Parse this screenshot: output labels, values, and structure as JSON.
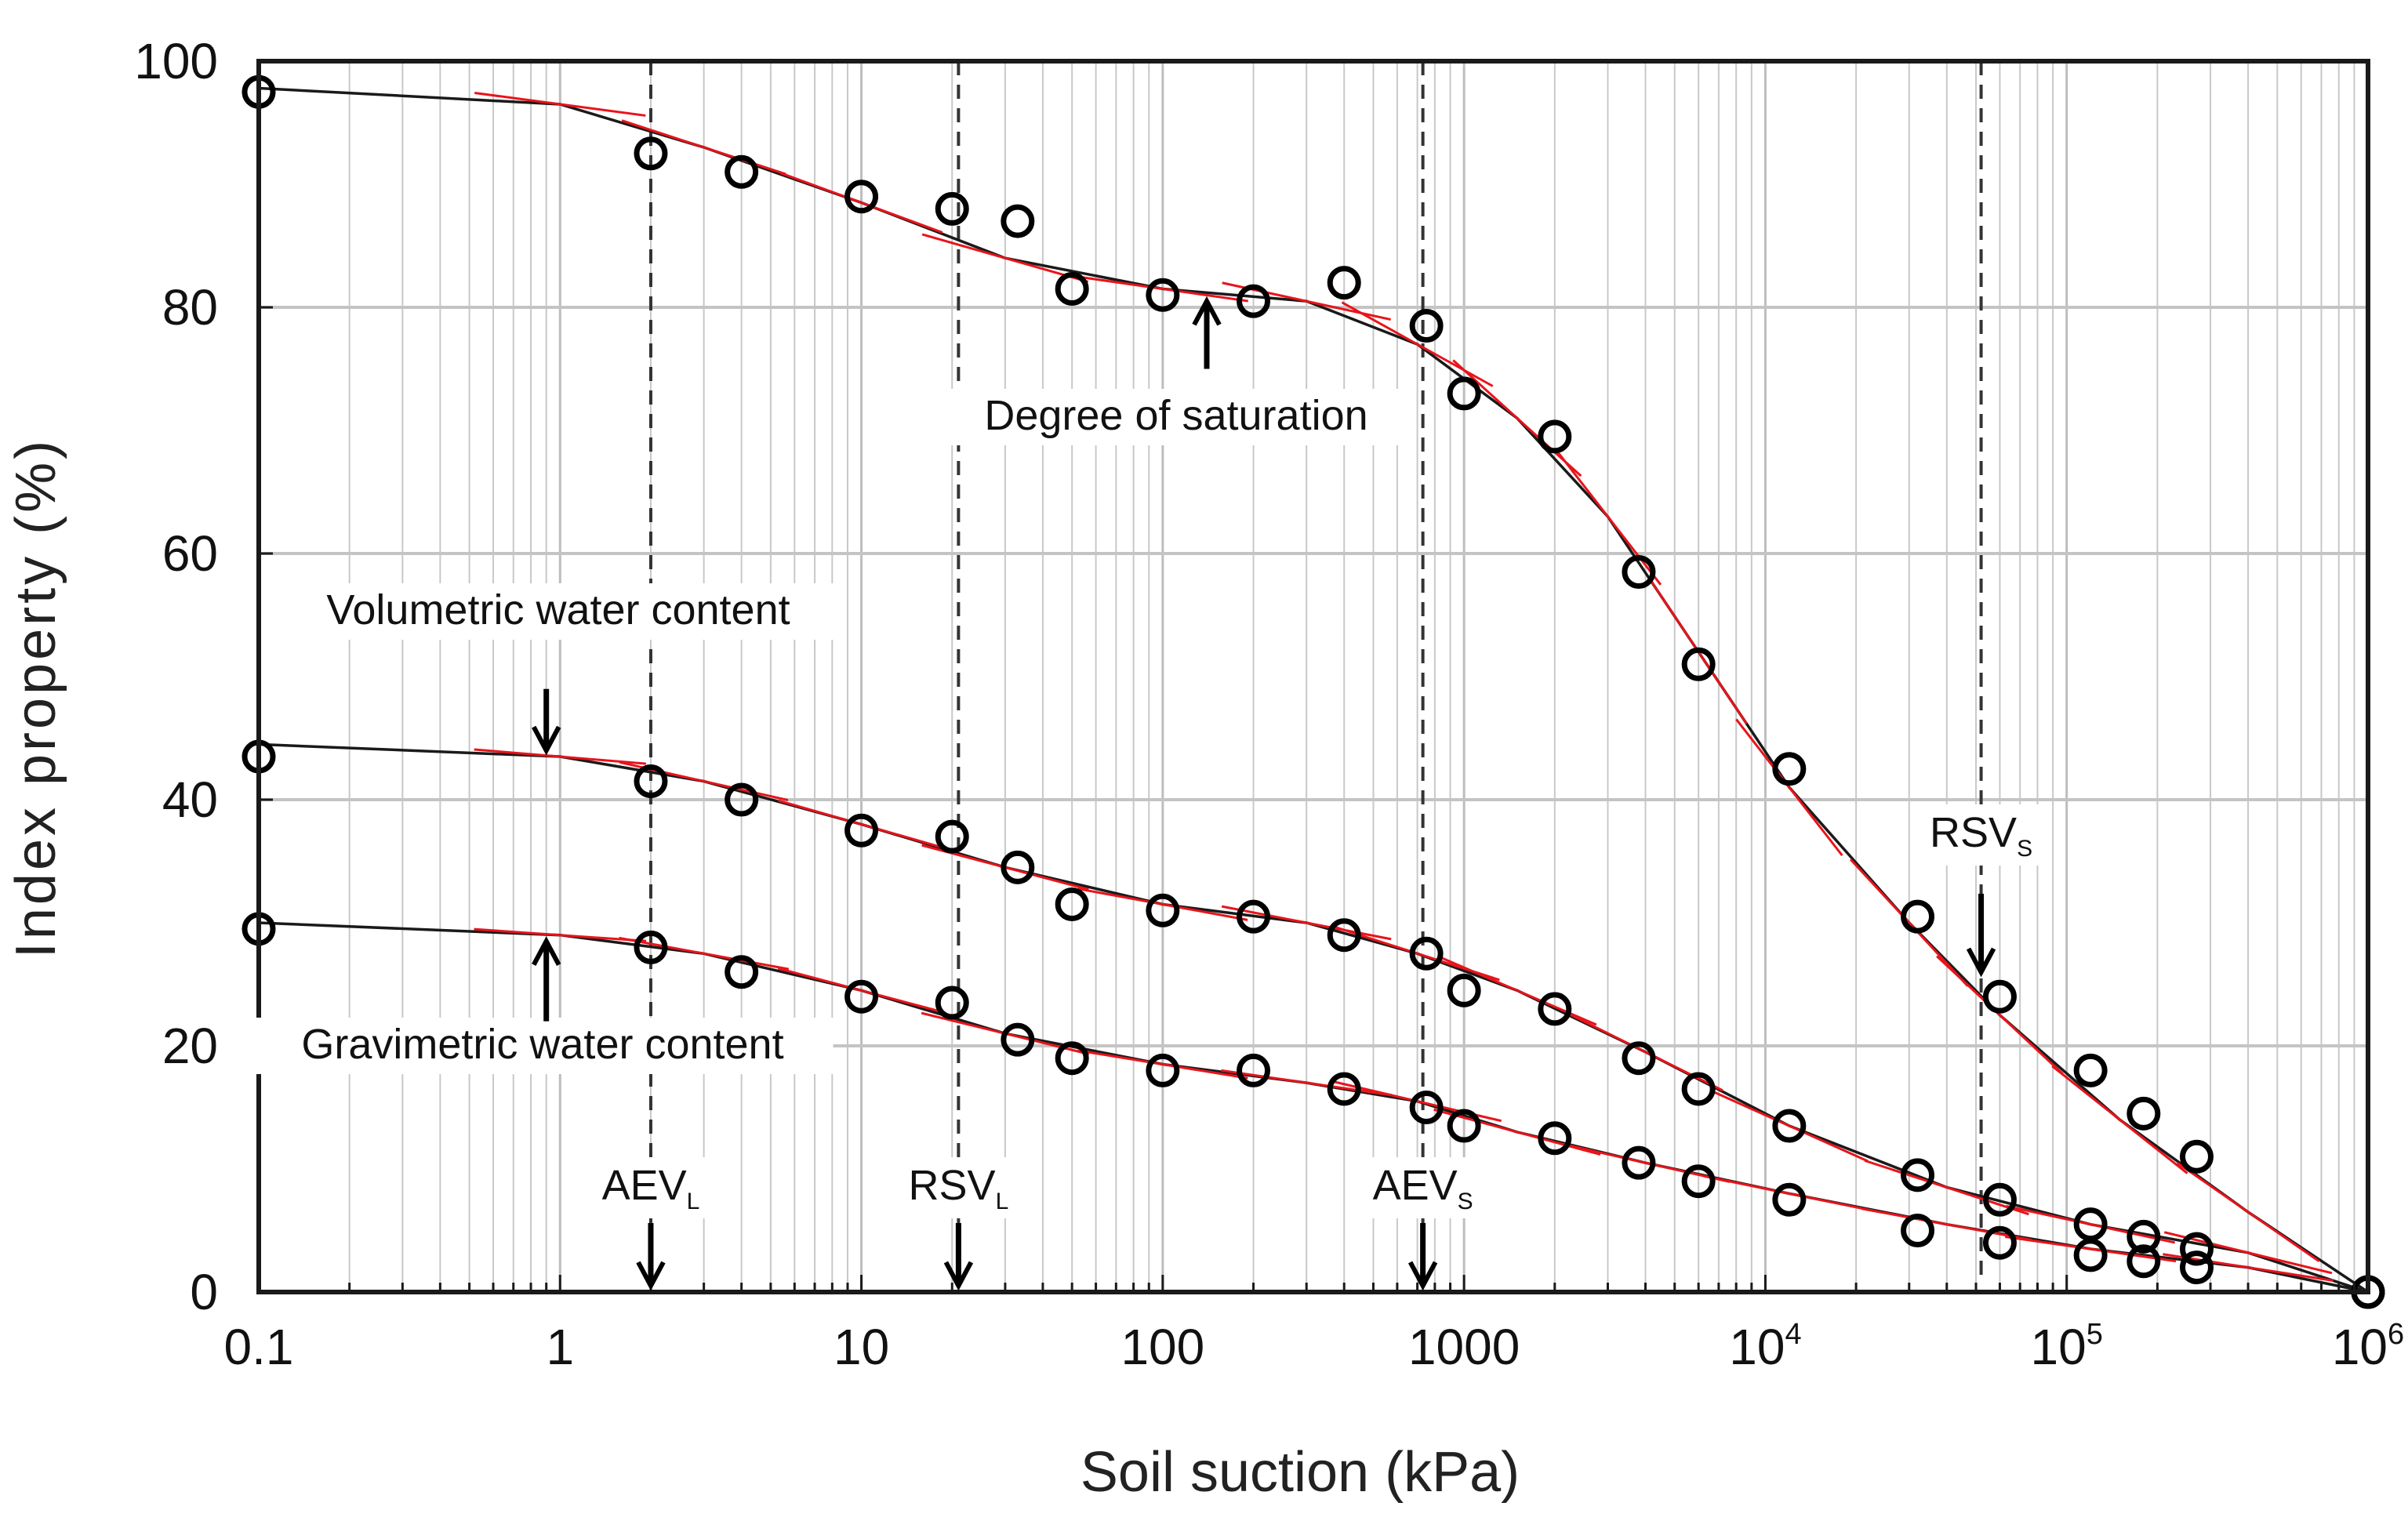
{
  "chart_data": {
    "type": "scatter",
    "title": "",
    "xlabel": "Soil suction (kPa)",
    "ylabel": "Index property (%)",
    "xscale": "log",
    "xlim": [
      0.1,
      1000000
    ],
    "ylim": [
      0,
      100
    ],
    "x_tick_labels": [
      {
        "v": 0.1,
        "main": "0.1"
      },
      {
        "v": 1,
        "main": "1"
      },
      {
        "v": 10,
        "main": "10"
      },
      {
        "v": 100,
        "main": "100"
      },
      {
        "v": 1000,
        "main": "1000"
      },
      {
        "v": 10000,
        "main": "10",
        "sup": "4"
      },
      {
        "v": 100000,
        "main": "10",
        "sup": "5"
      },
      {
        "v": 1000000,
        "main": "10",
        "sup": "6"
      }
    ],
    "y_tick_labels": [
      {
        "v": 0,
        "main": "0"
      },
      {
        "v": 20,
        "main": "20"
      },
      {
        "v": 40,
        "main": "40"
      },
      {
        "v": 60,
        "main": "60"
      },
      {
        "v": 80,
        "main": "80"
      },
      {
        "v": 100,
        "main": "100"
      }
    ],
    "grid": true,
    "series": [
      {
        "name": "Degree of saturation",
        "points": [
          [
            0.1,
            97.5
          ],
          [
            2,
            92.5
          ],
          [
            4,
            91
          ],
          [
            10,
            89
          ],
          [
            20,
            88
          ],
          [
            33,
            87
          ],
          [
            50,
            81.5
          ],
          [
            100,
            81
          ],
          [
            200,
            80.5
          ],
          [
            400,
            82
          ],
          [
            750,
            78.5
          ],
          [
            1000,
            73
          ],
          [
            2000,
            69.5
          ],
          [
            3800,
            58.5
          ],
          [
            6000,
            51
          ],
          [
            12000,
            42.5
          ],
          [
            32000,
            30.5
          ],
          [
            60000,
            24
          ],
          [
            120000,
            18
          ],
          [
            180000,
            14.5
          ],
          [
            270000,
            11
          ],
          [
            1000000,
            0
          ]
        ],
        "fit": [
          [
            0.1,
            97.8
          ],
          [
            1,
            96.5
          ],
          [
            3,
            93
          ],
          [
            10,
            88.5
          ],
          [
            30,
            84
          ],
          [
            100,
            81.5
          ],
          [
            300,
            80.5
          ],
          [
            700,
            77
          ],
          [
            1500,
            71
          ],
          [
            3000,
            63
          ],
          [
            6000,
            52
          ],
          [
            12000,
            41
          ],
          [
            30000,
            30
          ],
          [
            60000,
            22.5
          ],
          [
            150000,
            14
          ],
          [
            400000,
            6.5
          ],
          [
            1000000,
            0
          ]
        ]
      },
      {
        "name": "Volumetric water content",
        "points": [
          [
            0.1,
            43.5
          ],
          [
            2,
            41.5
          ],
          [
            4,
            40
          ],
          [
            10,
            37.5
          ],
          [
            20,
            37
          ],
          [
            33,
            34.5
          ],
          [
            50,
            31.5
          ],
          [
            100,
            31
          ],
          [
            200,
            30.5
          ],
          [
            400,
            29
          ],
          [
            750,
            27.5
          ],
          [
            1000,
            24.5
          ],
          [
            2000,
            23
          ],
          [
            3800,
            19
          ],
          [
            6000,
            16.5
          ],
          [
            12000,
            13.5
          ],
          [
            32000,
            9.5
          ],
          [
            60000,
            7.5
          ],
          [
            120000,
            5.5
          ],
          [
            180000,
            4.5
          ],
          [
            270000,
            3.5
          ],
          [
            1000000,
            0
          ]
        ],
        "fit": [
          [
            0.1,
            44.5
          ],
          [
            1,
            43.5
          ],
          [
            3,
            41.5
          ],
          [
            10,
            38
          ],
          [
            30,
            34.5
          ],
          [
            100,
            31.5
          ],
          [
            300,
            30
          ],
          [
            700,
            27.5
          ],
          [
            1500,
            24.5
          ],
          [
            4000,
            19.5
          ],
          [
            12000,
            13.5
          ],
          [
            40000,
            8.5
          ],
          [
            120000,
            5.5
          ],
          [
            400000,
            3.2
          ],
          [
            1000000,
            0
          ]
        ]
      },
      {
        "name": "Gravimetric water content",
        "points": [
          [
            0.1,
            29.5
          ],
          [
            2,
            28
          ],
          [
            4,
            26
          ],
          [
            10,
            24
          ],
          [
            20,
            23.5
          ],
          [
            33,
            20.5
          ],
          [
            50,
            19
          ],
          [
            100,
            18
          ],
          [
            200,
            18
          ],
          [
            400,
            16.5
          ],
          [
            750,
            15
          ],
          [
            1000,
            13.5
          ],
          [
            2000,
            12.5
          ],
          [
            3800,
            10.5
          ],
          [
            6000,
            9
          ],
          [
            12000,
            7.5
          ],
          [
            32000,
            5
          ],
          [
            60000,
            4
          ],
          [
            120000,
            3
          ],
          [
            180000,
            2.5
          ],
          [
            270000,
            2
          ],
          [
            1000000,
            0
          ]
        ],
        "fit": [
          [
            0.1,
            30
          ],
          [
            1,
            29
          ],
          [
            3,
            27.5
          ],
          [
            10,
            24.5
          ],
          [
            30,
            21
          ],
          [
            100,
            18.5
          ],
          [
            300,
            17
          ],
          [
            700,
            15.5
          ],
          [
            1500,
            13
          ],
          [
            4000,
            10.5
          ],
          [
            12000,
            8
          ],
          [
            40000,
            5.5
          ],
          [
            120000,
            3.5
          ],
          [
            400000,
            2
          ],
          [
            1000000,
            0
          ]
        ]
      }
    ],
    "vertical_markers": [
      {
        "label": "AEV",
        "sub": "L",
        "x": 2,
        "line_to": 100
      },
      {
        "label": "RSV",
        "sub": "L",
        "x": 21,
        "line_to": 100
      },
      {
        "label": "AEV",
        "sub": "S",
        "x": 730,
        "line_to": 100
      },
      {
        "label": "RSV",
        "sub": "S",
        "x": 52000,
        "line_to": 100
      }
    ],
    "annotations": [
      {
        "text": "Degree of saturation",
        "series": "Degree of saturation",
        "arrow_x": 140,
        "arrow_from": 75,
        "arrow_to": 80.5
      },
      {
        "text": "Volumetric water content",
        "series": "Volumetric water content",
        "arrow_x": 0.9,
        "arrow_from": 49,
        "arrow_to": 44
      },
      {
        "text": "Gravimetric water content",
        "series": "Gravimetric water content",
        "arrow_x": 0.9,
        "arrow_from": 22,
        "arrow_to": 28.5
      }
    ]
  }
}
